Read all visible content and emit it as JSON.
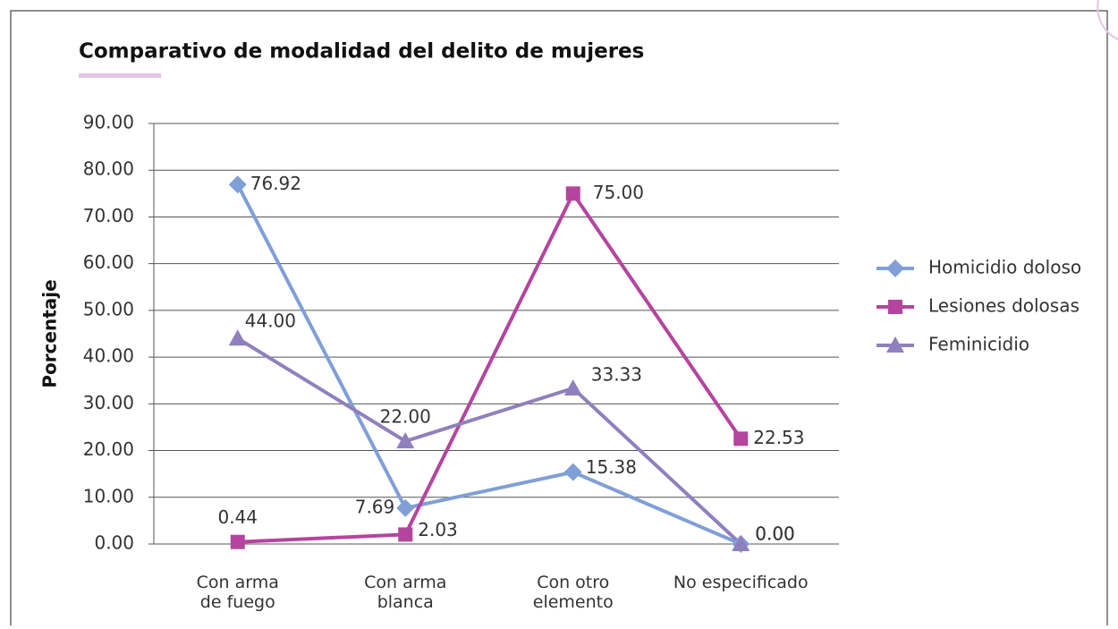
{
  "chart_data": {
    "type": "line",
    "title": "Comparativo de modalidad del delito de mujeres",
    "y_label": "Porcentaje",
    "categories": [
      "Con arma de fuego",
      "Con arma blanca",
      "Con otro elemento",
      "No especificado"
    ],
    "series": [
      {
        "name": "Homicidio doloso",
        "color": "#7f9fd6",
        "marker": "diamond",
        "values": [
          76.92,
          7.69,
          15.38,
          0
        ],
        "value_labels": [
          "76.92",
          "7.69",
          "15.38",
          "0.00"
        ]
      },
      {
        "name": "Lesiones dolosas",
        "color": "#b5449f",
        "marker": "square",
        "values": [
          0.44,
          2.03,
          75,
          22.53
        ],
        "value_labels": [
          "0.44",
          "2.03",
          "75.00",
          "22.53"
        ]
      },
      {
        "name": "Feminicidio",
        "color": "#8f80bd",
        "marker": "triangle",
        "values": [
          44,
          22,
          33.33,
          0
        ],
        "value_labels": [
          "44.00",
          "22.00",
          "33.33",
          "0.00"
        ]
      }
    ],
    "ylim": [
      0,
      90
    ],
    "yticks": [
      {
        "value": 0,
        "label": "0.00"
      },
      {
        "value": 10,
        "label": "10.00"
      },
      {
        "value": 20,
        "label": "20.00"
      },
      {
        "value": 30,
        "label": "30.00"
      },
      {
        "value": 40,
        "label": "40.00"
      },
      {
        "value": 50,
        "label": "50.00"
      },
      {
        "value": 60,
        "label": "60.00"
      },
      {
        "value": 70,
        "label": "70.00"
      },
      {
        "value": 80,
        "label": "80.00"
      },
      {
        "value": 90,
        "label": "90.00"
      }
    ],
    "grid": true,
    "legend": "right"
  }
}
